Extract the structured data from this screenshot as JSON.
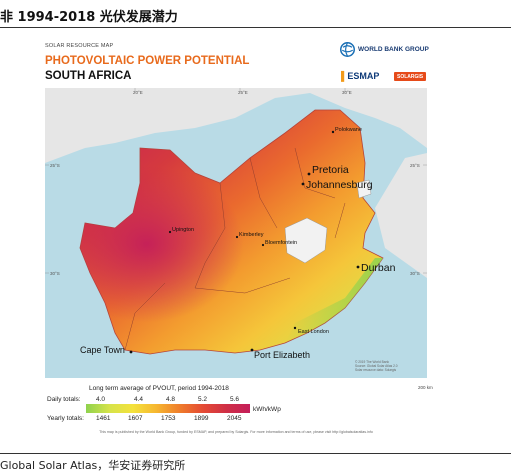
{
  "doc": {
    "title": "非 1994-2018 光伏发展潜力",
    "source": "Global Solar Atlas，华安证券研究所"
  },
  "poster": {
    "kicker": "SOLAR RESOURCE MAP",
    "headline": "PHOTOVOLTAIC POWER POTENTIAL",
    "country": "SOUTH AFRICA",
    "logos": {
      "world_bank": "WORLD BANK GROUP",
      "esmap": "ESMAP",
      "solargis": "SOLARGIS"
    },
    "credits": [
      "© 2019 The World Bank",
      "Source: Global Solar Atlas 2.0",
      "Solar resource data: Solargis"
    ],
    "footer": "This map is published by the World Bank Group, funded by ESMAP, and prepared by Solargis. For more information and terms of use, please visit http://globalsolaratlas.info"
  },
  "map": {
    "coords": {
      "lon_20": "20°E",
      "lon_25": "25°E",
      "lon_30": "30°E",
      "lat_25w": "25°S",
      "lat_30w": "30°S",
      "lat_25e": "25°S",
      "lat_30e": "30°S"
    },
    "scale_label": "200 km",
    "cities": {
      "polokwane": "Polokwane",
      "pretoria": "Pretoria",
      "johannesburg": "Johannesburg",
      "upington": "Upington",
      "kimberley": "Kimberley",
      "bloemfontein": "Bloemfontein",
      "durban": "Durban",
      "east_london": "East London",
      "cape_town": "Cape Town",
      "port_elizabeth": "Port Elizabeth"
    },
    "colors": {
      "ocean": "#b9dbe6",
      "neighbor": "#e6e6e6",
      "lesotho": "#f2f2f2",
      "scale_low": "#7fd14d",
      "scale_high": "#c41e5a"
    }
  },
  "legend": {
    "title": "Long term average of PVOUT, period 1994-2018",
    "daily_label": "Daily totals:",
    "yearly_label": "Yearly totals:",
    "daily_values": [
      "4.0",
      "4.4",
      "4.8",
      "5.2",
      "5.6"
    ],
    "yearly_values": [
      "1461",
      "1607",
      "1753",
      "1899",
      "2045"
    ],
    "units": "kWh/kWp",
    "gradient": [
      "#8fd24e",
      "#d6e34a",
      "#f4e23c",
      "#f6b630",
      "#ef7d2b",
      "#e44a34",
      "#cf2f46",
      "#c41e5a"
    ]
  }
}
